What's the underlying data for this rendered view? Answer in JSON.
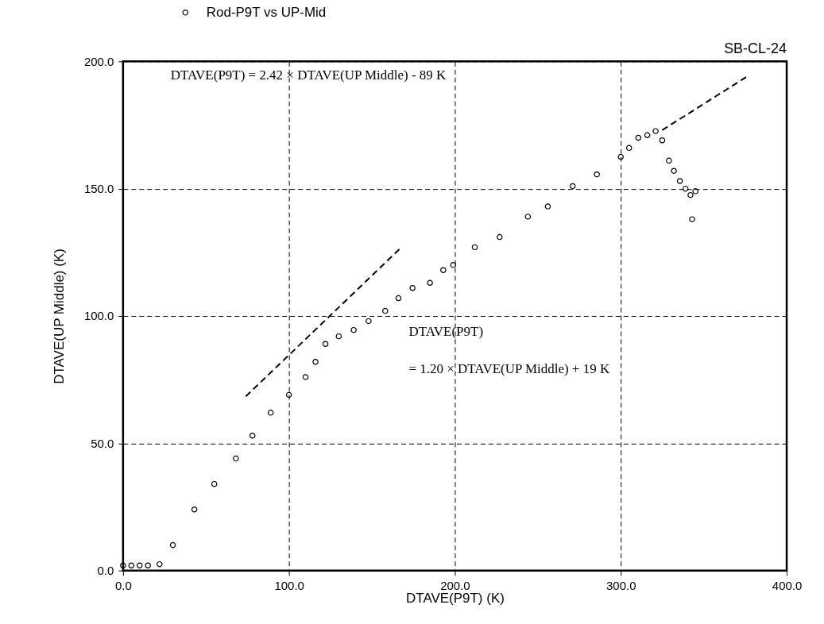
{
  "chart_data": {
    "type": "scatter",
    "subtitle": "SB-CL-24",
    "xlabel": "DTAVE(P9T)  (K)",
    "ylabel": "DTAVE(UP Middle)  (K)",
    "xlim": [
      0,
      400
    ],
    "ylim": [
      0,
      200
    ],
    "xticks": [
      {
        "value": 0,
        "label": "0.0"
      },
      {
        "value": 100,
        "label": "100.0"
      },
      {
        "value": 200,
        "label": "200.0"
      },
      {
        "value": 300,
        "label": "300.0"
      },
      {
        "value": 400,
        "label": "400.0"
      }
    ],
    "yticks": [
      {
        "value": 0,
        "label": "0.0"
      },
      {
        "value": 50,
        "label": "50.0"
      },
      {
        "value": 100,
        "label": "100.0"
      },
      {
        "value": 150,
        "label": "150.0"
      },
      {
        "value": 200,
        "label": "200.0"
      }
    ],
    "grid": true,
    "legend": "top left",
    "marker": "circle",
    "annotations": [
      "DTAVE(P9T) = 2.42 × DTAVE(UP Middle) - 89 K",
      "DTAVE(P9T)\n= 1.20 × DTAVE(UP Middle) + 19 K"
    ],
    "series": [
      {
        "name": "Rod-P9T vs UP-Mid",
        "color": "#000000",
        "x": [
          0,
          5,
          10,
          15,
          22,
          30,
          43,
          55,
          68,
          78,
          89,
          100,
          110,
          116,
          122,
          130,
          139,
          148,
          158,
          166,
          174.5,
          185,
          193,
          199,
          212,
          227,
          244,
          256,
          271,
          285.6,
          300,
          305,
          310.6,
          316,
          321,
          325,
          329,
          332,
          335.6,
          339,
          342,
          343,
          345
        ],
        "values": [
          2,
          2,
          2,
          2,
          2.5,
          10,
          24,
          34,
          44,
          53,
          62,
          69,
          76,
          82,
          89,
          92,
          94.5,
          98,
          102,
          107,
          111,
          113,
          118,
          120,
          127,
          131,
          139,
          143,
          151,
          155.6,
          162.5,
          166,
          170,
          171,
          172.6,
          169,
          161,
          157,
          153,
          150,
          147.5,
          138,
          149
        ]
      },
      {
        "type": "line",
        "color": "#000000",
        "line_style": "dashed",
        "marker": "none",
        "x": [
          74,
          167
        ],
        "values": [
          68.4,
          126.5
        ]
      },
      {
        "type": "line",
        "color": "#000000",
        "line_style": "dashed",
        "marker": "none",
        "x": [
          325,
          376
        ],
        "values": [
          173,
          194
        ]
      }
    ]
  }
}
